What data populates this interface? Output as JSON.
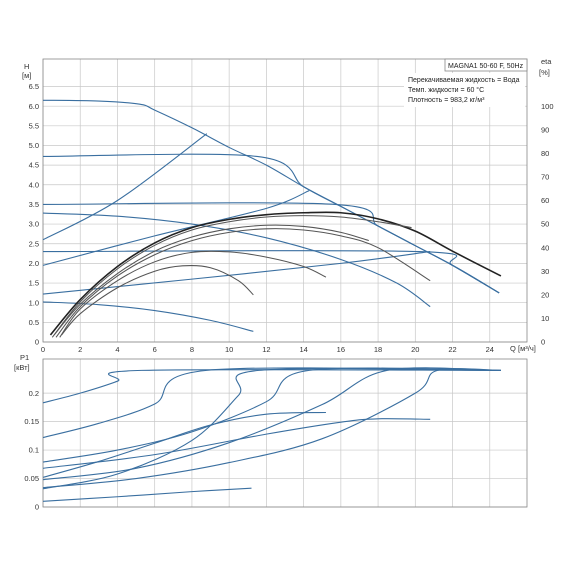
{
  "chart_data": [
    {
      "type": "line",
      "ylabel": "H",
      "yunit": "[м]",
      "y2label": "eta",
      "y2unit": "[%]",
      "xlabel": "Q",
      "xunit": "[м³/ч]",
      "xlim": [
        0,
        26
      ],
      "ylim": [
        0,
        7.2
      ],
      "y2lim": [
        0,
        120
      ],
      "xticks": [
        "0",
        "2",
        "4",
        "6",
        "8",
        "10",
        "12",
        "14",
        "16",
        "18",
        "20",
        "22",
        "24"
      ],
      "yticks": [
        "0",
        "0.5",
        "1.0",
        "1.5",
        "2.0",
        "2.5",
        "3.0",
        "3.5",
        "4.0",
        "4.5",
        "5.0",
        "5.5",
        "6.0",
        "6.5"
      ],
      "y2ticks": [
        "0",
        "10",
        "20",
        "30",
        "40",
        "50",
        "60",
        "70",
        "80",
        "90",
        "100"
      ],
      "grid": true,
      "info": {
        "model": "MAGNA1 50-60 F, 50Hz",
        "line1": "Перекачиваемая жидкость = Вода",
        "line2": "Темп. жидкости = 60 °C",
        "line3": "Плотность = 983,2 кг/м³"
      },
      "colors": {
        "head": "#3a6fa0",
        "eta": "#222222",
        "lowcurves": "#555555"
      },
      "head_curves": [
        {
          "points": [
            [
              0,
              6.15
            ],
            [
              3,
              6.13
            ],
            [
              5.2,
              6.05
            ],
            [
              6,
              5.9
            ],
            [
              8,
              5.45
            ],
            [
              10,
              4.95
            ],
            [
              12,
              4.5
            ],
            [
              14,
              3.95
            ],
            [
              16,
              3.45
            ],
            [
              18,
              2.95
            ],
            [
              20,
              2.45
            ],
            [
              22,
              1.95
            ],
            [
              24.5,
              1.25
            ]
          ]
        },
        {
          "points": [
            [
              0,
              4.72
            ],
            [
              11.5,
              4.72
            ],
            [
              14,
              3.95
            ],
            [
              16,
              3.45
            ],
            [
              18,
              2.95
            ],
            [
              20,
              2.45
            ],
            [
              22,
              1.95
            ],
            [
              24.5,
              1.25
            ]
          ]
        },
        {
          "points": [
            [
              0,
              3.5
            ],
            [
              15.7,
              3.5
            ],
            [
              18,
              2.95
            ],
            [
              20,
              2.45
            ],
            [
              22,
              1.95
            ],
            [
              24.5,
              1.25
            ]
          ]
        },
        {
          "points": [
            [
              0,
              2.3
            ],
            [
              20.2,
              2.3
            ],
            [
              22,
              1.95
            ],
            [
              24.5,
              1.25
            ]
          ]
        },
        {
          "points": [
            [
              0,
              2.6
            ],
            [
              4,
              3.6
            ],
            [
              8.8,
              5.3
            ]
          ]
        },
        {
          "points": [
            [
              0,
              1.95
            ],
            [
              6,
              2.7
            ],
            [
              12,
              3.4
            ],
            [
              14.3,
              3.85
            ]
          ]
        },
        {
          "points": [
            [
              0,
              1.22
            ],
            [
              8,
              1.6
            ],
            [
              16,
              2.0
            ],
            [
              20.8,
              2.3
            ]
          ]
        },
        {
          "points": [
            [
              0,
              3.28
            ],
            [
              4,
              3.2
            ],
            [
              8,
              3.0
            ],
            [
              12,
              2.65
            ],
            [
              16,
              2.1
            ],
            [
              19,
              1.5
            ],
            [
              20.8,
              0.9
            ]
          ]
        },
        {
          "points": [
            [
              0,
              1.02
            ],
            [
              3,
              0.95
            ],
            [
              6,
              0.8
            ],
            [
              9,
              0.55
            ],
            [
              11.3,
              0.27
            ]
          ]
        }
      ],
      "eta_curves": [
        {
          "points": [
            [
              0.4,
              3
            ],
            [
              2,
              18
            ],
            [
              4,
              32
            ],
            [
              6,
              42
            ],
            [
              8,
              48.5
            ],
            [
              10,
              52
            ],
            [
              12,
              54
            ],
            [
              14,
              54.8
            ],
            [
              16,
              54.8
            ],
            [
              18,
              52.2
            ],
            [
              20,
              47
            ],
            [
              22,
              38.5
            ],
            [
              24.6,
              28
            ]
          ]
        },
        {
          "points": [
            [
              0.5,
              2
            ],
            [
              2,
              17
            ],
            [
              4,
              31
            ],
            [
              6,
              41
            ],
            [
              8,
              47.5
            ],
            [
              10,
              51
            ],
            [
              12,
              53
            ],
            [
              14,
              53.6
            ],
            [
              16,
              53
            ],
            [
              18,
              51
            ],
            [
              19.8,
              48.5
            ]
          ]
        },
        {
          "points": [
            [
              0.6,
              3
            ],
            [
              2,
              16
            ],
            [
              4,
              29
            ],
            [
              6,
              38.5
            ],
            [
              8,
              44.5
            ],
            [
              10,
              48
            ],
            [
              12,
              49.5
            ],
            [
              14,
              49
            ],
            [
              16,
              46.5
            ],
            [
              17.5,
              43
            ]
          ]
        },
        {
          "points": [
            [
              0.7,
              2
            ],
            [
              2,
              15
            ],
            [
              4,
              28
            ],
            [
              6,
              37
            ],
            [
              8,
              43
            ],
            [
              10,
              46.5
            ],
            [
              12,
              48
            ],
            [
              14,
              47.5
            ],
            [
              16,
              45
            ],
            [
              18,
              40
            ],
            [
              20.8,
              26
            ]
          ]
        },
        {
          "points": [
            [
              0.9,
              2
            ],
            [
              2,
              14
            ],
            [
              4,
              26
            ],
            [
              6,
              34
            ],
            [
              8,
              38
            ],
            [
              10,
              38.2
            ],
            [
              12,
              36
            ],
            [
              14,
              32
            ],
            [
              15.2,
              27.5
            ]
          ]
        },
        {
          "points": [
            [
              1,
              3
            ],
            [
              2,
              12
            ],
            [
              4,
              23
            ],
            [
              6,
              30
            ],
            [
              7.5,
              32.3
            ],
            [
              9,
              31.5
            ],
            [
              10.5,
              26
            ],
            [
              11.3,
              20
            ]
          ]
        }
      ]
    },
    {
      "type": "line",
      "ylabel": "P1",
      "yunit": "[кВт]",
      "xlim": [
        0,
        26
      ],
      "ylim": [
        0,
        0.26
      ],
      "yticks": [
        "0",
        "0.05",
        "0.1",
        "0.15",
        "0.2"
      ],
      "grid": true,
      "colors": {
        "power": "#3a6fa0"
      },
      "power_curves": [
        {
          "points": [
            [
              0,
              0.183
            ],
            [
              2,
              0.2
            ],
            [
              4,
              0.221
            ],
            [
              5.3,
              0.24
            ],
            [
              24.6,
              0.24
            ]
          ]
        },
        {
          "points": [
            [
              0,
              0.122
            ],
            [
              3,
              0.147
            ],
            [
              6,
              0.181
            ],
            [
              8.8,
              0.24
            ],
            [
              24.6,
              0.24
            ]
          ]
        },
        {
          "points": [
            [
              0,
              0.079
            ],
            [
              4,
              0.1
            ],
            [
              8,
              0.132
            ],
            [
              12,
              0.185
            ],
            [
              14.3,
              0.24
            ],
            [
              24.6,
              0.24
            ]
          ]
        },
        {
          "points": [
            [
              0,
              0.048
            ],
            [
              5,
              0.068
            ],
            [
              10,
              0.113
            ],
            [
              15,
              0.18
            ],
            [
              18.5,
              0.24
            ],
            [
              24.6,
              0.24
            ]
          ]
        },
        {
          "points": [
            [
              0,
              0.034
            ],
            [
              5,
              0.05
            ],
            [
              10,
              0.078
            ],
            [
              15,
              0.12
            ],
            [
              20,
              0.2
            ],
            [
              21.2,
              0.24
            ],
            [
              24.6,
              0.24
            ]
          ]
        },
        {
          "points": [
            [
              0,
              0.032
            ],
            [
              4,
              0.058
            ],
            [
              8,
              0.117
            ],
            [
              10.5,
              0.196
            ],
            [
              11.6,
              0.24
            ],
            [
              24.6,
              0.24
            ]
          ]
        },
        {
          "points": [
            [
              0,
              0.068
            ],
            [
              6,
              0.092
            ],
            [
              12,
              0.128
            ],
            [
              16,
              0.149
            ],
            [
              18,
              0.155
            ],
            [
              20.8,
              0.154
            ]
          ]
        },
        {
          "points": [
            [
              0,
              0.052
            ],
            [
              3,
              0.08
            ],
            [
              6,
              0.112
            ],
            [
              9,
              0.144
            ],
            [
              12,
              0.163
            ],
            [
              15.2,
              0.166
            ]
          ]
        },
        {
          "points": [
            [
              0,
              0.01
            ],
            [
              4,
              0.018
            ],
            [
              8,
              0.027
            ],
            [
              11.2,
              0.033
            ]
          ]
        }
      ]
    }
  ]
}
